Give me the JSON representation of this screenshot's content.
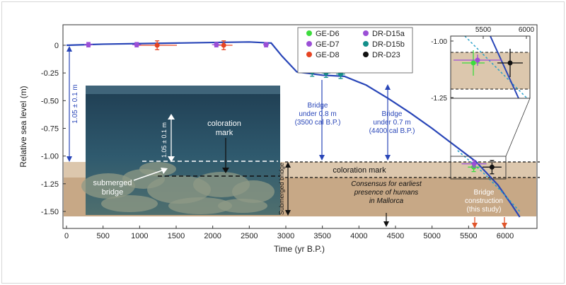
{
  "chart_data": {
    "type": "scatter",
    "xlabel": "Time (yr B.P.)",
    "ylabel": "Relative sea level (m)",
    "xlim": [
      0,
      6500
    ],
    "ylim": [
      -1.65,
      0.1
    ],
    "xticks": [
      "0",
      "500",
      "1000",
      "1500",
      "2000",
      "2500",
      "3000",
      "3500",
      "4000",
      "4500",
      "5000",
      "5500",
      "6000"
    ],
    "yticks": [
      "0",
      "-0.25",
      "-0.50",
      "-0.75",
      "-1.00",
      "-1.25",
      "-1.50"
    ],
    "sea_level_curve": [
      {
        "x": 0,
        "y": 0.0
      },
      {
        "x": 500,
        "y": 0.01
      },
      {
        "x": 1000,
        "y": 0.015
      },
      {
        "x": 1500,
        "y": 0.02
      },
      {
        "x": 2000,
        "y": 0.025
      },
      {
        "x": 2500,
        "y": 0.03
      },
      {
        "x": 2800,
        "y": 0.02
      },
      {
        "x": 2950,
        "y": -0.1
      },
      {
        "x": 3150,
        "y": -0.24
      },
      {
        "x": 3500,
        "y": -0.27
      },
      {
        "x": 3800,
        "y": -0.28
      },
      {
        "x": 4100,
        "y": -0.36
      },
      {
        "x": 4400,
        "y": -0.48
      },
      {
        "x": 4700,
        "y": -0.61
      },
      {
        "x": 5000,
        "y": -0.75
      },
      {
        "x": 5300,
        "y": -0.9
      },
      {
        "x": 5600,
        "y": -1.05
      },
      {
        "x": 5900,
        "y": -1.26
      },
      {
        "x": 6100,
        "y": -1.45
      },
      {
        "x": 6200,
        "y": -1.55
      }
    ],
    "uncertainty_curve": [
      {
        "x": 5350,
        "y": -0.95
      },
      {
        "x": 5700,
        "y": -1.15
      },
      {
        "x": 5950,
        "y": -1.32
      },
      {
        "x": 6200,
        "y": -1.5
      }
    ],
    "series": [
      {
        "name": "GE-D6",
        "color": "#3ddc3d",
        "points": [
          {
            "x": 5570,
            "y": -1.1,
            "xerr": 80,
            "yerr": 0.04
          }
        ]
      },
      {
        "name": "GE-D7",
        "color": "#9b4fd6",
        "points": [
          {
            "x": 5575,
            "y": -1.07,
            "xerr": 170,
            "yerr": 0.03
          }
        ]
      },
      {
        "name": "GE-D8",
        "color": "#e64422",
        "points": [
          {
            "x": 1240,
            "y": 0.0,
            "xerr": 270,
            "yerr": 0.04
          },
          {
            "x": 2150,
            "y": 0.0,
            "xerr": 120,
            "yerr": 0.04
          }
        ]
      },
      {
        "name": "DR-D15a",
        "color": "#9b4fd6",
        "points": [
          {
            "x": 300,
            "y": 0.005,
            "xerr": 60,
            "yerr": 0.02
          },
          {
            "x": 960,
            "y": 0.005,
            "xerr": 60,
            "yerr": 0.02
          },
          {
            "x": 2050,
            "y": 0.005,
            "xerr": 60,
            "yerr": 0.02
          },
          {
            "x": 2730,
            "y": 0.005,
            "xerr": 40,
            "yerr": 0.02
          }
        ]
      },
      {
        "name": "DR-D15b",
        "color": "#138f8a",
        "points": [
          {
            "x": 3360,
            "y": -0.24,
            "xerr": 60,
            "yerr": 0.04
          },
          {
            "x": 3550,
            "y": -0.25,
            "xerr": 60,
            "yerr": 0.04
          },
          {
            "x": 3750,
            "y": -0.26,
            "xerr": 60,
            "yerr": 0.04
          }
        ]
      },
      {
        "name": "DR-D23",
        "color": "#111111",
        "points": [
          {
            "x": 5820,
            "y": -1.1,
            "xerr": 130,
            "yerr": 0.06
          }
        ]
      }
    ],
    "bands": [
      {
        "label": "coloration mark",
        "y0": -1.2,
        "y1": -1.05
      },
      {
        "label": "Consensus for earliest presence of humans in Mallorca",
        "x": 4400
      }
    ],
    "annotations": {
      "left_range": "1.05 ± 0.1 m",
      "bridge1": [
        "Bridge",
        "under 0.8 m",
        "(3500 cal B.P.)"
      ],
      "bridge2": [
        "Bridge",
        "under 0.7 m",
        "(4400 cal B.P.)"
      ],
      "submerged_bridge_vertical": "Submerged bridge",
      "coloration_band": "coloration mark",
      "consensus": [
        "Consensus for earliest",
        "presence of humans",
        "in Mallorca"
      ],
      "bridge_construction": [
        "Bridge",
        "construction",
        "(this study)"
      ],
      "photo_range": "1.05 ± 0.1 m",
      "photo_mark": [
        "coloration",
        "mark"
      ],
      "photo_bridge": [
        "submerged",
        "bridge"
      ]
    },
    "inset": {
      "xticks": [
        "5500",
        "6000"
      ],
      "yticks": [
        "-1.00",
        "-1.25"
      ],
      "xlim": [
        5300,
        6000
      ],
      "ylim": [
        -1.3,
        -0.95
      ]
    },
    "legend_position": "top-right"
  }
}
